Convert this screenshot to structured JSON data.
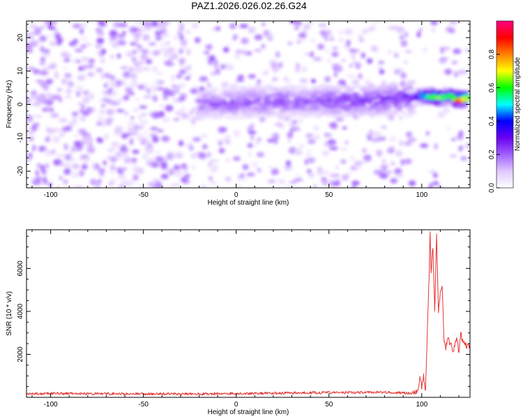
{
  "title": "PAZ1.2026.026.02.26.G24",
  "chart_data": [
    {
      "type": "heatmap",
      "xlabel": "Height of straight line (km)",
      "ylabel": "Frequency (Hz)",
      "xlim": [
        -113,
        126
      ],
      "ylim": [
        -25,
        25
      ],
      "xticks": [
        -100,
        -50,
        0,
        50,
        100
      ],
      "xtick_labels": [
        "-100",
        "-50",
        "0",
        "50",
        "100"
      ],
      "yticks": [
        -20,
        -10,
        0,
        10,
        20
      ],
      "ytick_labels": [
        "-20",
        "-10",
        "0",
        "10",
        "20"
      ],
      "colorbar": {
        "label": "Normalized spectral amplitude",
        "range": [
          0,
          1
        ],
        "ticks": [
          0.0,
          0.2,
          0.4,
          0.6,
          0.8
        ],
        "tick_labels": [
          "0.0",
          "0.2",
          "0.4",
          "0.6",
          "0.8"
        ],
        "colors": [
          "#ffffff",
          "#e0c8ff",
          "#a060ff",
          "#6a00f0",
          "#0000ff",
          "#00ffff",
          "#00ff00",
          "#ffff00",
          "#ff8000",
          "#ff0000",
          "#ff0080"
        ]
      },
      "signal_band": [
        {
          "x": -20,
          "f": 0.0,
          "amp": 0.2
        },
        {
          "x": 0,
          "f": 0.5,
          "amp": 0.22
        },
        {
          "x": 20,
          "f": 1.0,
          "amp": 0.23
        },
        {
          "x": 40,
          "f": 1.0,
          "amp": 0.24
        },
        {
          "x": 60,
          "f": 1.0,
          "amp": 0.26
        },
        {
          "x": 80,
          "f": 1.5,
          "amp": 0.28
        },
        {
          "x": 95,
          "f": 2.0,
          "amp": 0.3
        },
        {
          "x": 100,
          "f": 2.5,
          "amp": 0.45
        },
        {
          "x": 105,
          "f": 2.5,
          "amp": 0.6
        },
        {
          "x": 110,
          "f": 2.0,
          "amp": 0.65
        },
        {
          "x": 115,
          "f": 2.5,
          "amp": 0.6
        },
        {
          "x": 120,
          "f": 1.5,
          "amp": 0.85
        },
        {
          "x": 125,
          "f": 2.0,
          "amp": 0.7
        }
      ],
      "noise_amp": 0.2
    },
    {
      "type": "line",
      "xlabel": "Height of straight line (km)",
      "ylabel": "SNR (10 * v/v)",
      "xlim": [
        -113,
        126
      ],
      "ylim": [
        0,
        7800
      ],
      "xticks": [
        -100,
        -50,
        0,
        50,
        100
      ],
      "xtick_labels": [
        "-100",
        "-50",
        "0",
        "50",
        "100"
      ],
      "yticks": [
        2000,
        4000,
        6000
      ],
      "ytick_labels": [
        "2000",
        "4000",
        "6000"
      ],
      "color": "#e53333",
      "series": [
        {
          "x": [
            -113,
            -100,
            -80,
            -60,
            -40,
            -20,
            0,
            20,
            40,
            60,
            80,
            90,
            95,
            98,
            99,
            100,
            101,
            102,
            103,
            104,
            104.5,
            105,
            106,
            107,
            108,
            109,
            110,
            111,
            112,
            113,
            114,
            115,
            116,
            117,
            118,
            119,
            120,
            121,
            122,
            124,
            126
          ],
          "y": [
            150,
            180,
            170,
            165,
            160,
            160,
            180,
            190,
            220,
            220,
            240,
            200,
            200,
            300,
            900,
            500,
            1000,
            300,
            3000,
            5800,
            7800,
            5800,
            7000,
            4000,
            7500,
            4000,
            4800,
            5200,
            2600,
            2300,
            2800,
            2500,
            2400,
            2100,
            2500,
            2800,
            2000,
            3000,
            2600,
            2400,
            2400
          ]
        }
      ]
    }
  ]
}
